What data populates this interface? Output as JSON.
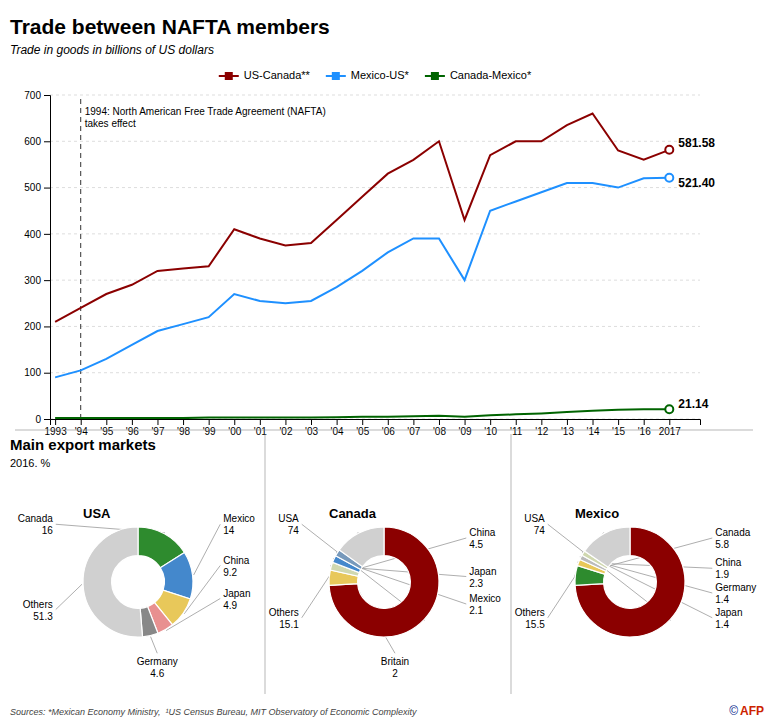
{
  "chart_data": [
    {
      "type": "line",
      "title": "Trade between NAFTA members",
      "subtitle": "Trade in goods in billions of US dollars",
      "x": [
        1993,
        1994,
        1995,
        1996,
        1997,
        1998,
        1999,
        2000,
        2001,
        2002,
        2003,
        2004,
        2005,
        2006,
        2007,
        2008,
        2009,
        2010,
        2011,
        2012,
        2013,
        2014,
        2015,
        2016,
        2017
      ],
      "series": [
        {
          "name": "US-Canada**",
          "color": "#8B0000",
          "values": [
            210,
            240,
            270,
            290,
            320,
            325,
            330,
            410,
            390,
            375,
            380,
            430,
            480,
            530,
            560,
            600,
            430,
            570,
            600,
            600,
            635,
            660,
            580,
            560,
            581.58
          ],
          "value_labels": [
            null,
            null,
            null,
            null,
            null,
            null,
            null,
            null,
            null,
            null,
            null,
            null,
            null,
            null,
            null,
            null,
            null,
            null,
            null,
            null,
            null,
            null,
            null,
            null,
            "581.58"
          ]
        },
        {
          "name": "Mexico-US*",
          "color": "#1E90FF",
          "values": [
            90,
            105,
            130,
            160,
            190,
            205,
            220,
            270,
            255,
            250,
            255,
            285,
            320,
            360,
            390,
            390,
            300,
            450,
            470,
            490,
            510,
            510,
            500,
            520,
            521.4
          ],
          "value_labels": [
            null,
            null,
            null,
            null,
            null,
            null,
            null,
            null,
            null,
            null,
            null,
            null,
            null,
            null,
            null,
            null,
            null,
            null,
            null,
            null,
            null,
            null,
            null,
            null,
            "521.40"
          ]
        },
        {
          "name": "Canada-Mexico*",
          "color": "#006400",
          "values": [
            2,
            2,
            2,
            2,
            2,
            2,
            3,
            3,
            3,
            3,
            3,
            4,
            5,
            5,
            6,
            7,
            5,
            8,
            10,
            12,
            15,
            18,
            20,
            21,
            21.14
          ],
          "value_labels": [
            null,
            null,
            null,
            null,
            null,
            null,
            null,
            null,
            null,
            null,
            null,
            null,
            null,
            null,
            null,
            null,
            null,
            null,
            null,
            null,
            null,
            null,
            null,
            null,
            "21.14"
          ]
        }
      ],
      "xlim": [
        1992.8,
        2018.2
      ],
      "xticks": [
        1993,
        {
          "value": 1994,
          "label": "'94"
        },
        {
          "value": 1995,
          "label": "'95"
        },
        {
          "value": 1996,
          "label": "'96"
        },
        {
          "value": 1997,
          "label": "'97"
        },
        {
          "value": 1998,
          "label": "'98"
        },
        {
          "value": 1999,
          "label": "'99"
        },
        {
          "value": 2000,
          "label": "'00"
        },
        {
          "value": 2001,
          "label": "'01"
        },
        {
          "value": 2002,
          "label": "'02"
        },
        {
          "value": 2003,
          "label": "'03"
        },
        {
          "value": 2004,
          "label": "'04"
        },
        {
          "value": 2005,
          "label": "'05"
        },
        {
          "value": 2006,
          "label": "'06"
        },
        {
          "value": 2007,
          "label": "'07"
        },
        {
          "value": 2008,
          "label": "'08"
        },
        {
          "value": 2009,
          "label": "'09"
        },
        {
          "value": 2010,
          "label": "'10"
        },
        {
          "value": 2011,
          "label": "'11"
        },
        {
          "value": 2012,
          "label": "'12"
        },
        {
          "value": 2013,
          "label": "'13"
        },
        {
          "value": 2014,
          "label": "'14"
        },
        {
          "value": 2015,
          "label": "'15"
        },
        {
          "value": 2016,
          "label": "'16"
        },
        2017
      ],
      "ylim": [
        0,
        700
      ],
      "yticks": [
        0,
        100,
        200,
        300,
        400,
        500,
        600,
        700
      ],
      "grid": true,
      "legend": "top",
      "annotations": [
        {
          "x": 1994,
          "text": "1994: North American Free Trade Agreement (NAFTA)\ntakes effect"
        }
      ],
      "source": "Sources: *Mexican Economy Ministry,  ¹US Census Bureau, MIT Observatory of Economic Complexity",
      "credit": [
        "©",
        "AFP"
      ]
    },
    {
      "type": "pie",
      "section_title": "Main export markets",
      "section_subtitle": "2016. %",
      "title": "USA",
      "categories": [
        "Canada",
        "Mexico",
        "China",
        "Japan",
        "Germany",
        "Others"
      ],
      "values": [
        16,
        14,
        9.2,
        4.9,
        4.6,
        51.3
      ],
      "colors": [
        "#2e8b2e",
        "#4488cc",
        "#e8c85a",
        "#e89090",
        "#888888",
        "#d0d0d0"
      ],
      "data_labels": true
    },
    {
      "type": "pie",
      "title": "Canada",
      "categories": [
        "USA",
        "China",
        "Japan",
        "Mexico",
        "Britain",
        "Others"
      ],
      "values": [
        74,
        4.5,
        2.3,
        2.1,
        2,
        15.1
      ],
      "colors": [
        "#8B0000",
        "#e8c85a",
        "#d0d8b0",
        "#4488cc",
        "#7799bb",
        "#d0d0d0"
      ],
      "data_labels": true
    },
    {
      "type": "pie",
      "title": "Mexico",
      "categories": [
        "USA",
        "Canada",
        "China",
        "Germany",
        "Japan",
        "Others"
      ],
      "values": [
        74,
        5.8,
        1.9,
        1.4,
        1.4,
        15.5
      ],
      "colors": [
        "#8B0000",
        "#2e8b2e",
        "#e8c85a",
        "#bbbbbb",
        "#d0d8b0",
        "#d0d0d0"
      ],
      "data_labels": true
    }
  ]
}
